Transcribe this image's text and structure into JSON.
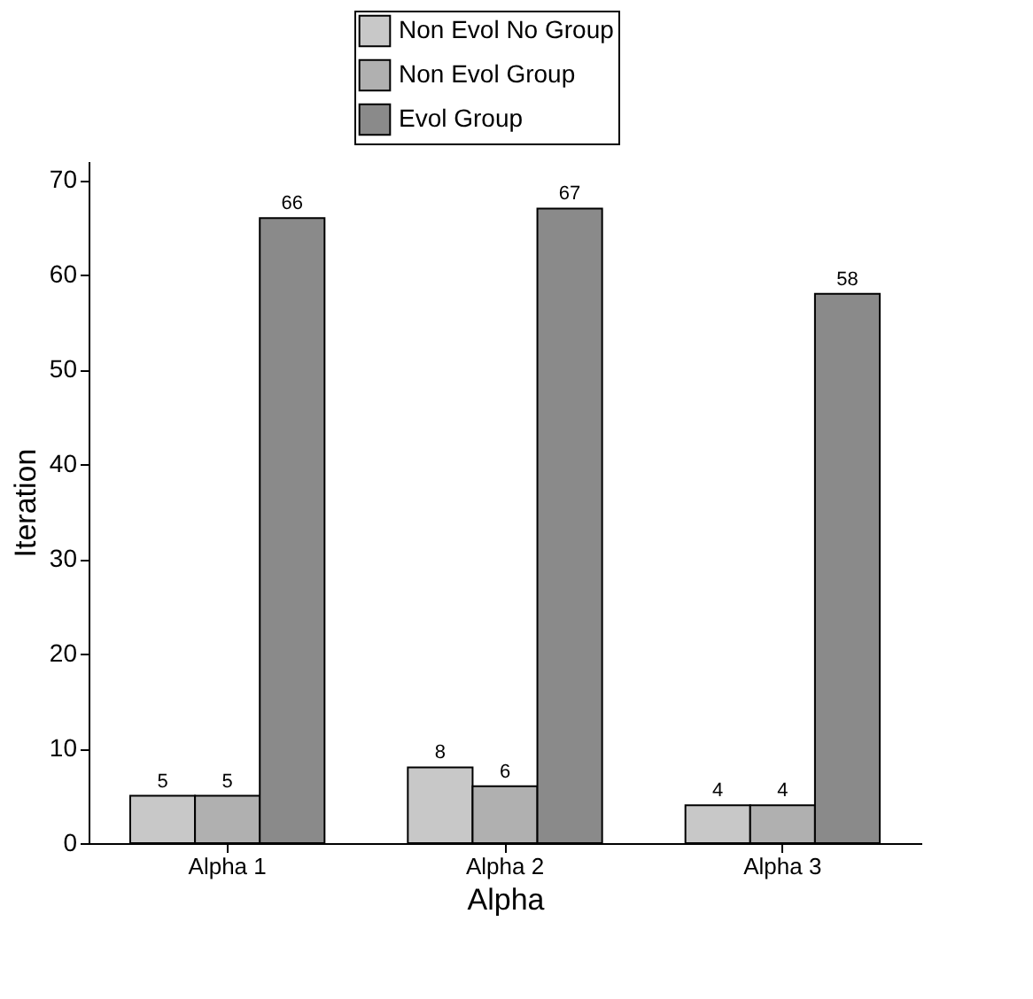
{
  "chart_data": {
    "type": "bar",
    "xlabel": "Alpha",
    "ylabel": "Iteration",
    "categories": [
      "Alpha 1",
      "Alpha 2",
      "Alpha 3"
    ],
    "series": [
      {
        "name": "Non Evol No Group",
        "color": "#c8c8c8",
        "values": [
          5,
          8,
          4
        ]
      },
      {
        "name": "Non Evol Group",
        "color": "#b0b0b0",
        "values": [
          5,
          6,
          4
        ]
      },
      {
        "name": "Evol Group",
        "color": "#8a8a8a",
        "values": [
          66,
          67,
          58
        ]
      }
    ],
    "ylim": [
      0,
      72
    ],
    "yticks": [
      0,
      10,
      20,
      30,
      40,
      50,
      60,
      70
    ],
    "data_labels": true,
    "legend": "top",
    "grid": false
  }
}
